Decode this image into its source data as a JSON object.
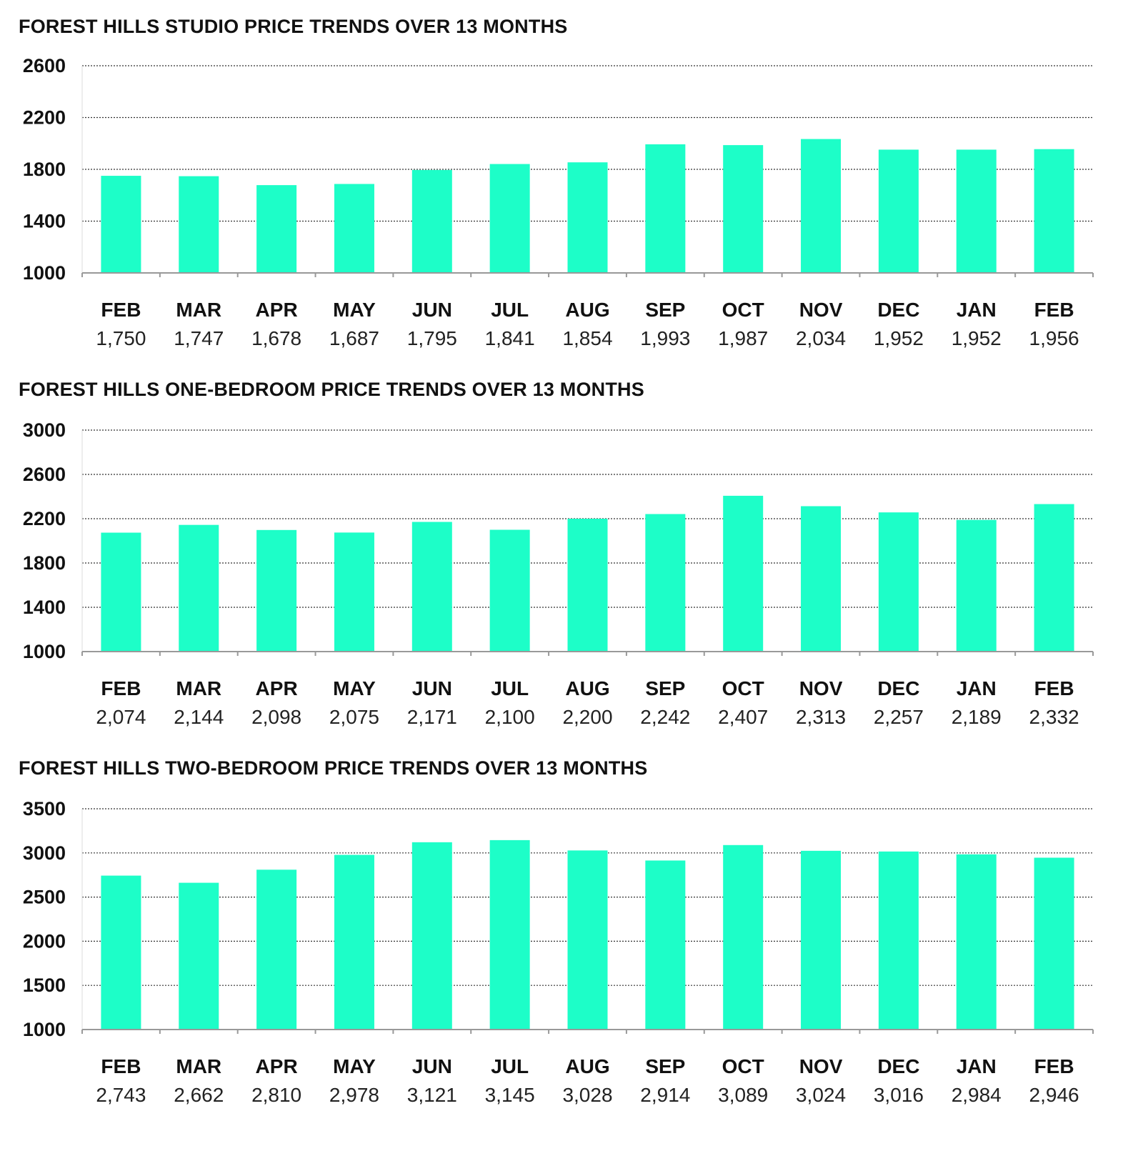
{
  "colors": {
    "bar": "#1dfec8",
    "grid": "#333333",
    "axis": "#999999",
    "text": "#111111"
  },
  "chart_data": [
    {
      "type": "bar",
      "title": "FOREST HILLS STUDIO PRICE TRENDS OVER 13 MONTHS",
      "categories": [
        "FEB",
        "MAR",
        "APR",
        "MAY",
        "JUN",
        "JUL",
        "AUG",
        "SEP",
        "OCT",
        "NOV",
        "DEC",
        "JAN",
        "FEB"
      ],
      "values": [
        1750,
        1747,
        1678,
        1687,
        1795,
        1841,
        1854,
        1993,
        1987,
        2034,
        1952,
        1952,
        1956
      ],
      "value_labels": [
        "1,750",
        "1,747",
        "1,678",
        "1,687",
        "1,795",
        "1,841",
        "1,854",
        "1,993",
        "1,987",
        "2,034",
        "1,952",
        "1,952",
        "1,956"
      ],
      "yticks": [
        "1000",
        "1400",
        "1800",
        "2200",
        "2600"
      ],
      "ylim": [
        1000,
        2600
      ],
      "grid": true
    },
    {
      "type": "bar",
      "title": "FOREST HILLS ONE-BEDROOM PRICE TRENDS OVER 13 MONTHS",
      "categories": [
        "FEB",
        "MAR",
        "APR",
        "MAY",
        "JUN",
        "JUL",
        "AUG",
        "SEP",
        "OCT",
        "NOV",
        "DEC",
        "JAN",
        "FEB"
      ],
      "values": [
        2074,
        2144,
        2098,
        2075,
        2171,
        2100,
        2200,
        2242,
        2407,
        2313,
        2257,
        2189,
        2332
      ],
      "value_labels": [
        "2,074",
        "2,144",
        "2,098",
        "2,075",
        "2,171",
        "2,100",
        "2,200",
        "2,242",
        "2,407",
        "2,313",
        "2,257",
        "2,189",
        "2,332"
      ],
      "yticks": [
        "1000",
        "1400",
        "1800",
        "2200",
        "2600",
        "3000"
      ],
      "ylim": [
        1000,
        3000
      ],
      "grid": true
    },
    {
      "type": "bar",
      "title": "FOREST HILLS TWO-BEDROOM PRICE TRENDS OVER 13 MONTHS",
      "categories": [
        "FEB",
        "MAR",
        "APR",
        "MAY",
        "JUN",
        "JUL",
        "AUG",
        "SEP",
        "OCT",
        "NOV",
        "DEC",
        "JAN",
        "FEB"
      ],
      "values": [
        2743,
        2662,
        2810,
        2978,
        3121,
        3145,
        3028,
        2914,
        3089,
        3024,
        3016,
        2984,
        2946
      ],
      "value_labels": [
        "2,743",
        "2,662",
        "2,810",
        "2,978",
        "3,121",
        "3,145",
        "3,028",
        "2,914",
        "3,089",
        "3,024",
        "3,016",
        "2,984",
        "2,946"
      ],
      "yticks": [
        "1000",
        "1500",
        "2000",
        "2500",
        "3000",
        "3500"
      ],
      "ylim": [
        1000,
        3500
      ],
      "grid": true
    }
  ]
}
